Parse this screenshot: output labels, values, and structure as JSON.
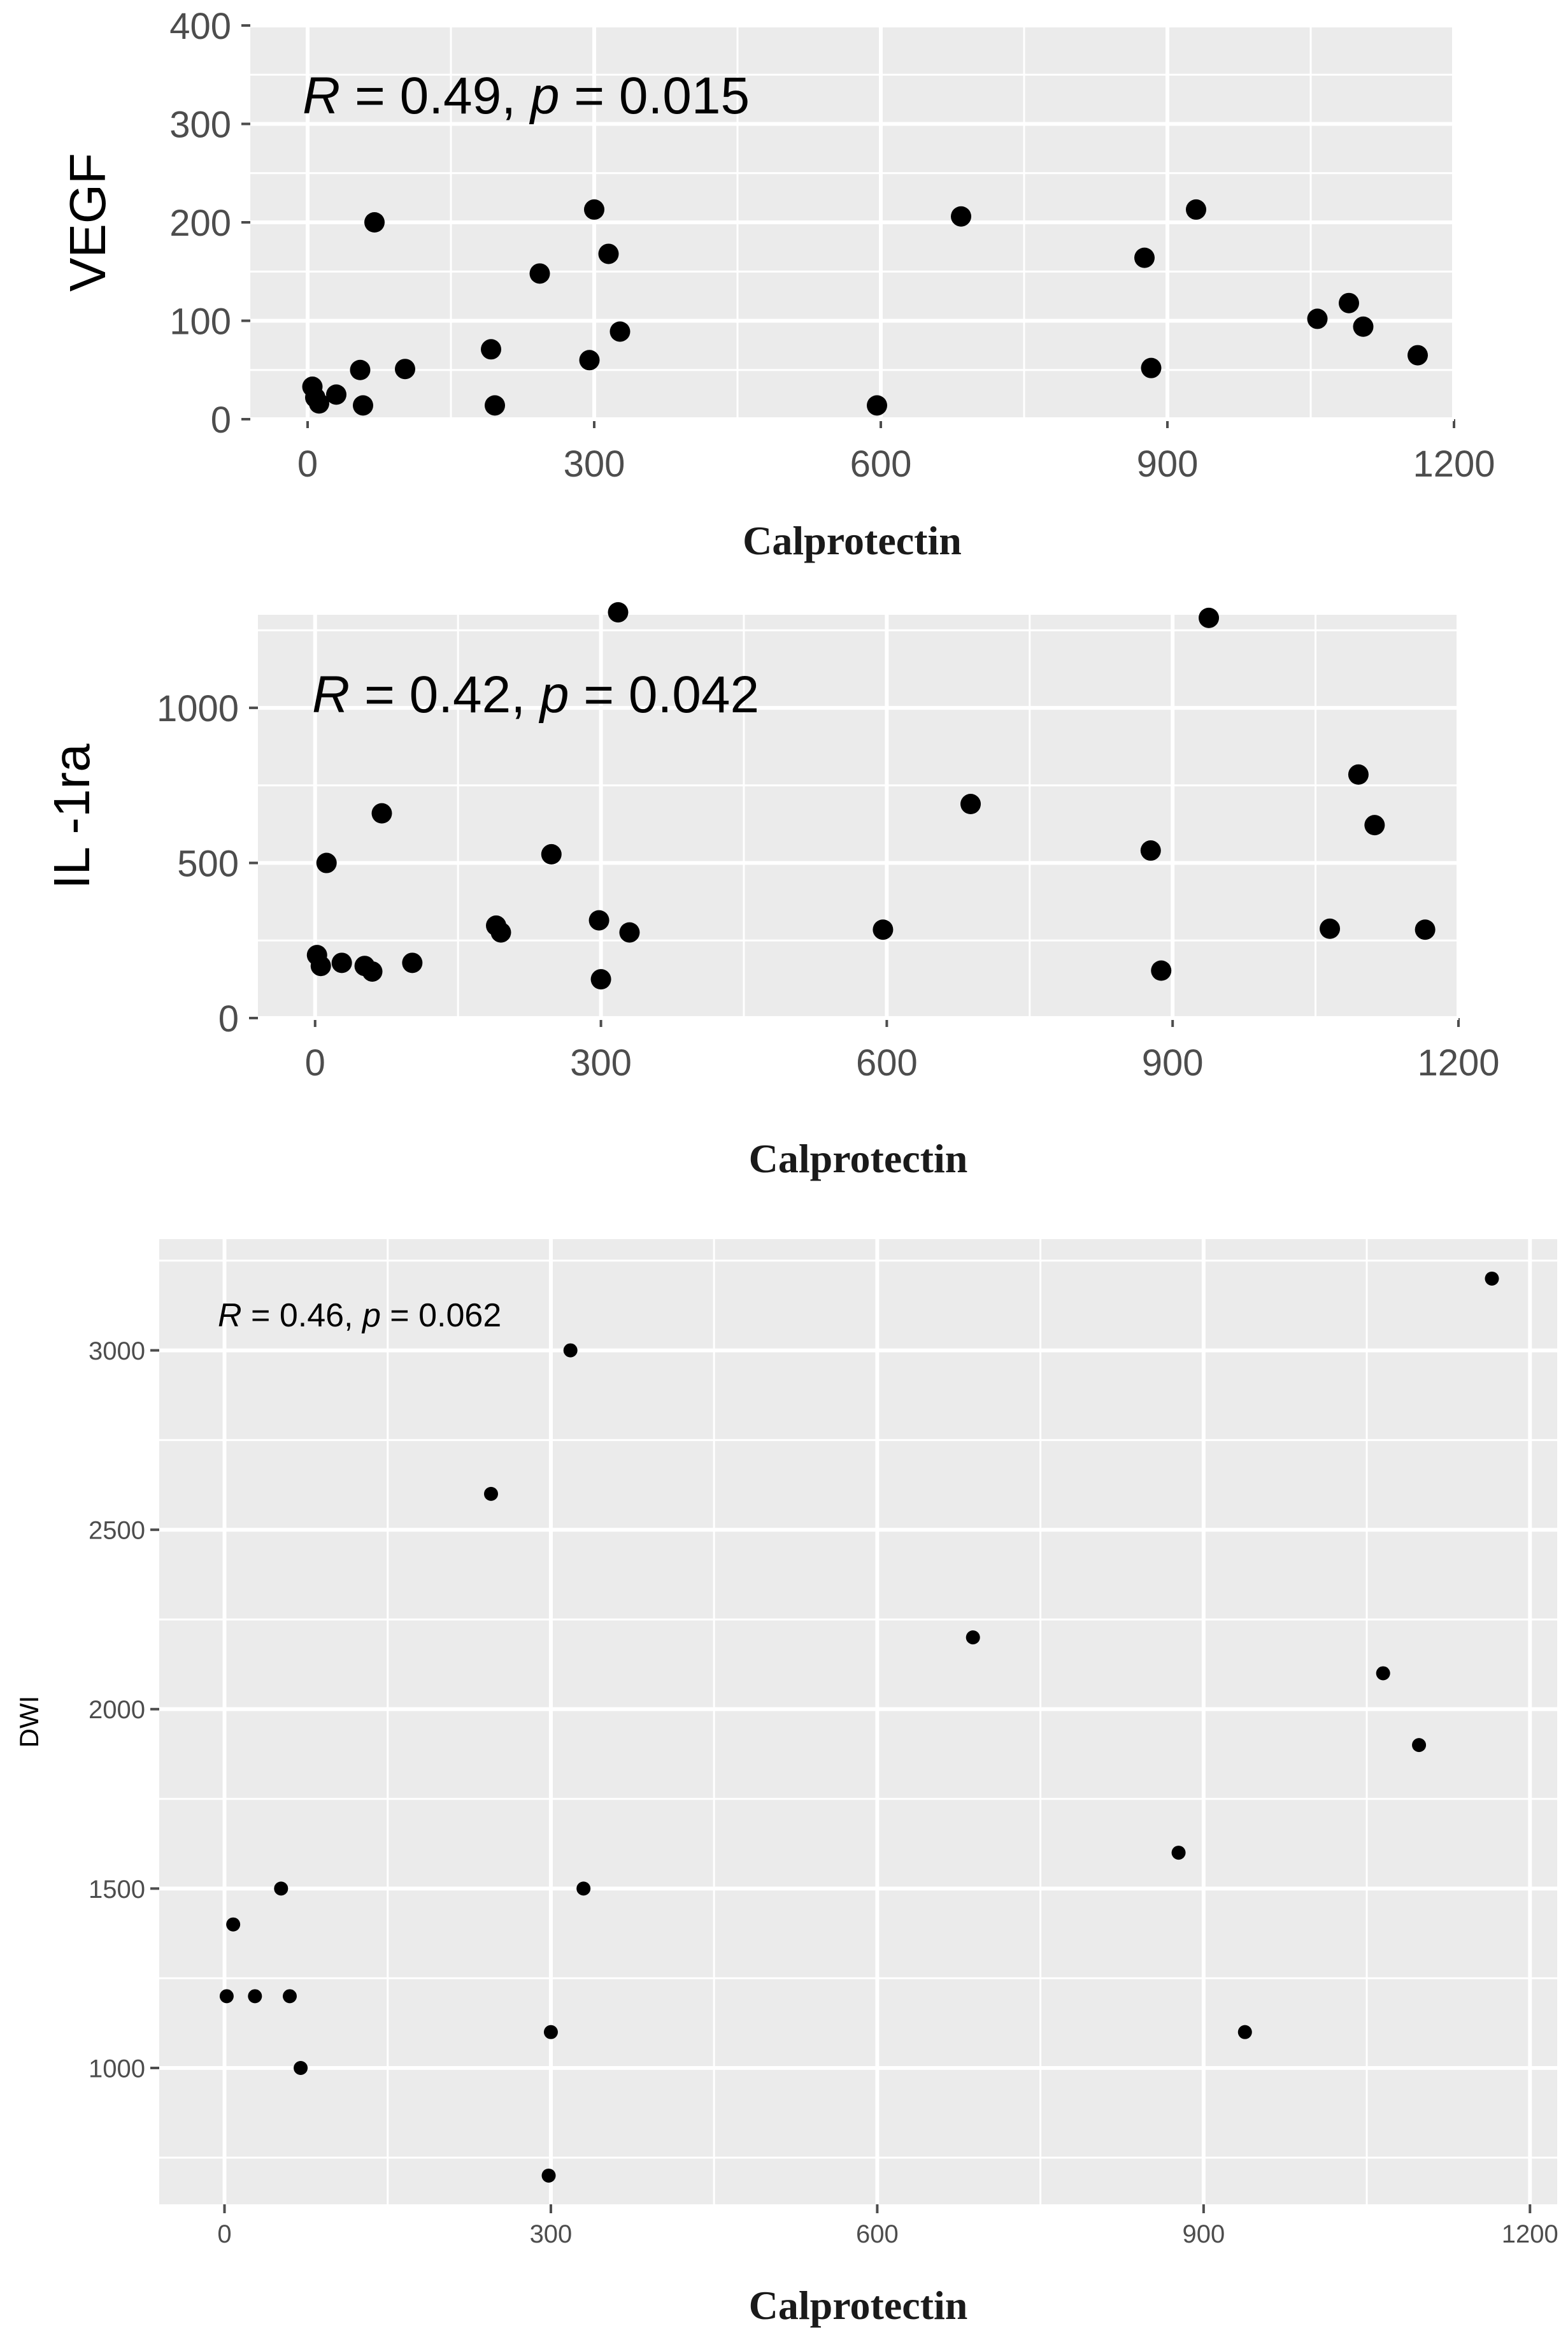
{
  "chart_data": [
    {
      "type": "scatter",
      "xlabel": "Calprotectin",
      "ylabel": "VEGF",
      "xlim": [
        -60,
        1200
      ],
      "ylim": [
        0,
        400
      ],
      "xticks": [
        0,
        300,
        600,
        900,
        1200
      ],
      "yticks": [
        0,
        100,
        200,
        300,
        400
      ],
      "xtick_labels": [
        "0",
        "300",
        "600",
        "900",
        "1200"
      ],
      "ytick_labels": [
        "0",
        "100",
        "200",
        "300",
        "400"
      ],
      "grid": true,
      "annotation": {
        "r_sym": "R",
        "r_text": " = 0.49, ",
        "p_sym": "p",
        "p_text": " = 0.015"
      },
      "points": [
        {
          "x": 5,
          "y": 33
        },
        {
          "x": 8,
          "y": 22
        },
        {
          "x": 12,
          "y": 16
        },
        {
          "x": 30,
          "y": 25
        },
        {
          "x": 55,
          "y": 50
        },
        {
          "x": 58,
          "y": 14
        },
        {
          "x": 70,
          "y": 200
        },
        {
          "x": 102,
          "y": 51
        },
        {
          "x": 192,
          "y": 71
        },
        {
          "x": 196,
          "y": 14
        },
        {
          "x": 243,
          "y": 148
        },
        {
          "x": 295,
          "y": 60
        },
        {
          "x": 300,
          "y": 213
        },
        {
          "x": 315,
          "y": 168
        },
        {
          "x": 327,
          "y": 89
        },
        {
          "x": 596,
          "y": 14
        },
        {
          "x": 684,
          "y": 206
        },
        {
          "x": 876,
          "y": 164
        },
        {
          "x": 883,
          "y": 52
        },
        {
          "x": 930,
          "y": 213
        },
        {
          "x": 1057,
          "y": 102
        },
        {
          "x": 1090,
          "y": 118
        },
        {
          "x": 1105,
          "y": 94
        },
        {
          "x": 1162,
          "y": 65
        }
      ]
    },
    {
      "type": "scatter",
      "xlabel": "Calprotectin",
      "ylabel": "IL -1ra",
      "xlim": [
        -60,
        1200
      ],
      "ylim": [
        0,
        1300
      ],
      "xticks": [
        0,
        300,
        600,
        900,
        1200
      ],
      "yticks": [
        0,
        500,
        1000
      ],
      "xtick_labels": [
        "0",
        "300",
        "600",
        "900",
        "1200"
      ],
      "ytick_labels": [
        "0",
        "500",
        "1000"
      ],
      "grid": true,
      "annotation": {
        "r_sym": "R",
        "r_text": " = 0.42, ",
        "p_sym": "p",
        "p_text": " = 0.042"
      },
      "points": [
        {
          "x": 2,
          "y": 203
        },
        {
          "x": 6,
          "y": 168
        },
        {
          "x": 12,
          "y": 500
        },
        {
          "x": 28,
          "y": 178
        },
        {
          "x": 52,
          "y": 168
        },
        {
          "x": 60,
          "y": 150
        },
        {
          "x": 70,
          "y": 660
        },
        {
          "x": 102,
          "y": 178
        },
        {
          "x": 190,
          "y": 298
        },
        {
          "x": 195,
          "y": 276
        },
        {
          "x": 248,
          "y": 528
        },
        {
          "x": 298,
          "y": 315
        },
        {
          "x": 300,
          "y": 125
        },
        {
          "x": 318,
          "y": 1308
        },
        {
          "x": 330,
          "y": 276
        },
        {
          "x": 596,
          "y": 285
        },
        {
          "x": 688,
          "y": 690
        },
        {
          "x": 877,
          "y": 540
        },
        {
          "x": 888,
          "y": 153
        },
        {
          "x": 938,
          "y": 1290
        },
        {
          "x": 1065,
          "y": 288
        },
        {
          "x": 1095,
          "y": 785
        },
        {
          "x": 1112,
          "y": 622
        },
        {
          "x": 1165,
          "y": 285
        }
      ]
    },
    {
      "type": "scatter",
      "xlabel": "Calprotectin",
      "ylabel": "DWI",
      "xlim": [
        -60,
        1225
      ],
      "ylim": [
        620,
        3310
      ],
      "xticks": [
        0,
        300,
        600,
        900,
        1200
      ],
      "yticks": [
        1000,
        1500,
        2000,
        2500,
        3000
      ],
      "xtick_labels": [
        "0",
        "300",
        "600",
        "900",
        "1200"
      ],
      "ytick_labels": [
        "1000",
        "1500",
        "2000",
        "2500",
        "3000"
      ],
      "grid": true,
      "annotation": {
        "r_sym": "R",
        "r_text": " = 0.46, ",
        "p_sym": "p",
        "p_text": " = 0.062"
      },
      "points": [
        {
          "x": 2,
          "y": 1200
        },
        {
          "x": 8,
          "y": 1400
        },
        {
          "x": 28,
          "y": 1200
        },
        {
          "x": 52,
          "y": 1500
        },
        {
          "x": 60,
          "y": 1200
        },
        {
          "x": 70,
          "y": 1000
        },
        {
          "x": 245,
          "y": 2600
        },
        {
          "x": 298,
          "y": 700
        },
        {
          "x": 300,
          "y": 1100
        },
        {
          "x": 318,
          "y": 3000
        },
        {
          "x": 330,
          "y": 1500
        },
        {
          "x": 688,
          "y": 2200
        },
        {
          "x": 877,
          "y": 1600
        },
        {
          "x": 938,
          "y": 1100
        },
        {
          "x": 1065,
          "y": 2100
        },
        {
          "x": 1098,
          "y": 1900
        },
        {
          "x": 1165,
          "y": 3200
        }
      ]
    }
  ]
}
